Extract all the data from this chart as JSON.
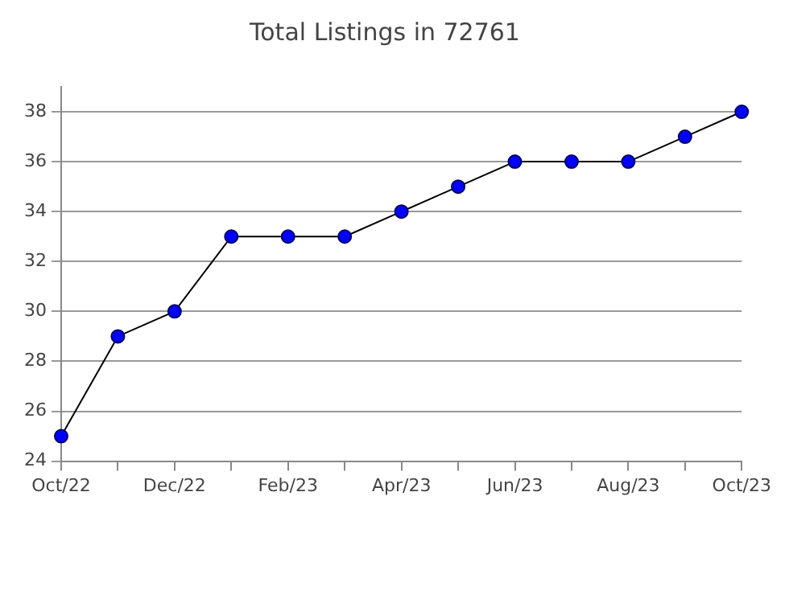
{
  "chart_data": {
    "type": "line",
    "title": "Total Listings in 72761",
    "categories": [
      "Oct/22",
      null,
      "Dec/22",
      null,
      "Feb/23",
      null,
      "Apr/23",
      null,
      "Jun/23",
      null,
      "Aug/23",
      null,
      "Oct/23"
    ],
    "series": [
      {
        "color": "#0000ff",
        "values": [
          25,
          29,
          30,
          33,
          33,
          33,
          34,
          35,
          36,
          36,
          36,
          37,
          38
        ]
      }
    ],
    "ylim": [
      24,
      39
    ],
    "yticks": [
      24,
      26,
      28,
      30,
      32,
      34,
      36,
      38
    ],
    "grid": "y",
    "legend": false,
    "marker": "circle",
    "line_style": "solid"
  }
}
